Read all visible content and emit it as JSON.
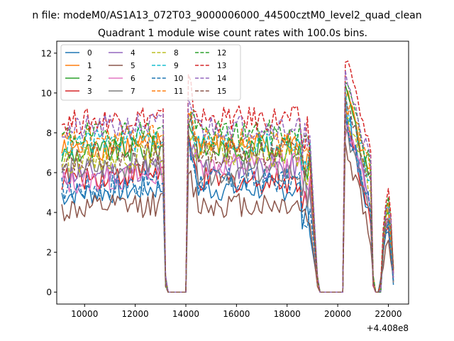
{
  "chart_data": {
    "type": "line",
    "suptitle": "n file: modeM0/AS1A13_072T03_9000006000_44500cztM0_level2_quad_clean",
    "title": "Quadrant 1 module wise count rates with 100.0s bins.",
    "xlabel": "",
    "ylabel": "",
    "x_offset_label": "+4.408e8",
    "xlim": [
      8900,
      22800
    ],
    "ylim": [
      -0.6,
      12.6
    ],
    "x_ticks": [
      10000,
      12000,
      14000,
      16000,
      18000,
      20000,
      22000
    ],
    "x_tick_labels": [
      "10000",
      "12000",
      "14000",
      "16000",
      "18000",
      "20000",
      "22000"
    ],
    "y_ticks": [
      0,
      2,
      4,
      6,
      8,
      10,
      12
    ],
    "y_tick_labels": [
      "0",
      "2",
      "4",
      "6",
      "8",
      "10",
      "12"
    ],
    "legend_position": "top-left",
    "x_segments": [
      {
        "start": 9100,
        "end": 13100
      },
      {
        "start": 14100,
        "end": 18900
      },
      {
        "start": 20300,
        "end": 21300
      },
      {
        "start": 21700,
        "end": 22200
      }
    ],
    "gaps": [
      {
        "from": 13100,
        "edge": 13200,
        "zero_start": 13300,
        "zero_end": 14000,
        "to": 14100
      },
      {
        "from": 18900,
        "edge": 19200,
        "zero_start": 19300,
        "zero_end": 20200,
        "to": 20300
      },
      {
        "from": 21300,
        "edge": 21400,
        "zero_start": 21500,
        "zero_end": 21600,
        "to": 21700
      }
    ],
    "series": [
      {
        "name": "0",
        "color": "#1f77b4",
        "dash": "solid",
        "base": [
          4.9,
          5.2,
          5.1,
          5.4
        ],
        "peak": 9.5
      },
      {
        "name": "1",
        "color": "#ff7f0e",
        "dash": "solid",
        "base": [
          7.1,
          7.4,
          7.3,
          7.2
        ],
        "peak": 10.0
      },
      {
        "name": "2",
        "color": "#2ca02c",
        "dash": "solid",
        "base": [
          6.9,
          7.2,
          7.0,
          7.1
        ],
        "peak": 10.1
      },
      {
        "name": "3",
        "color": "#d62728",
        "dash": "solid",
        "base": [
          5.7,
          5.6,
          5.5,
          5.6
        ],
        "peak": 8.8
      },
      {
        "name": "4",
        "color": "#9467bd",
        "dash": "solid",
        "base": [
          5.9,
          6.3,
          6.2,
          6.4
        ],
        "peak": 8.5
      },
      {
        "name": "5",
        "color": "#8c564b",
        "dash": "solid",
        "base": [
          4.1,
          4.4,
          4.3,
          4.2
        ],
        "peak": 7.5
      },
      {
        "name": "6",
        "color": "#e377c2",
        "dash": "solid",
        "base": [
          5.5,
          6.4,
          6.2,
          6.3
        ],
        "peak": 8.2
      },
      {
        "name": "7",
        "color": "#7f7f7f",
        "dash": "solid",
        "base": [
          6.1,
          6.0,
          5.9,
          6.0
        ],
        "peak": 8.0
      },
      {
        "name": "8",
        "color": "#bcbd22",
        "dash": "dashed",
        "base": [
          6.6,
          6.9,
          6.8,
          7.0
        ],
        "peak": 9.0
      },
      {
        "name": "9",
        "color": "#17becf",
        "dash": "dashed",
        "base": [
          7.4,
          7.5,
          7.3,
          7.4
        ],
        "peak": 9.6
      },
      {
        "name": "10",
        "color": "#1f77b4",
        "dash": "dashed",
        "base": [
          5.2,
          5.6,
          5.5,
          5.5
        ],
        "peak": 9.0
      },
      {
        "name": "11",
        "color": "#ff7f0e",
        "dash": "dashed",
        "base": [
          7.5,
          7.6,
          7.5,
          7.3
        ],
        "peak": 9.8
      },
      {
        "name": "12",
        "color": "#2ca02c",
        "dash": "dashed",
        "base": [
          7.8,
          8.0,
          7.8,
          7.7
        ],
        "peak": 10.4
      },
      {
        "name": "13",
        "color": "#d62728",
        "dash": "dashed",
        "base": [
          8.5,
          8.7,
          8.5,
          8.4
        ],
        "peak": 11.9
      },
      {
        "name": "14",
        "color": "#9467bd",
        "dash": "dashed",
        "base": [
          8.1,
          8.3,
          8.1,
          8.0
        ],
        "peak": 10.8
      },
      {
        "name": "15",
        "color": "#8c564b",
        "dash": "dashed",
        "base": [
          6.7,
          7.0,
          6.9,
          6.9
        ],
        "peak": 9.9
      }
    ]
  }
}
